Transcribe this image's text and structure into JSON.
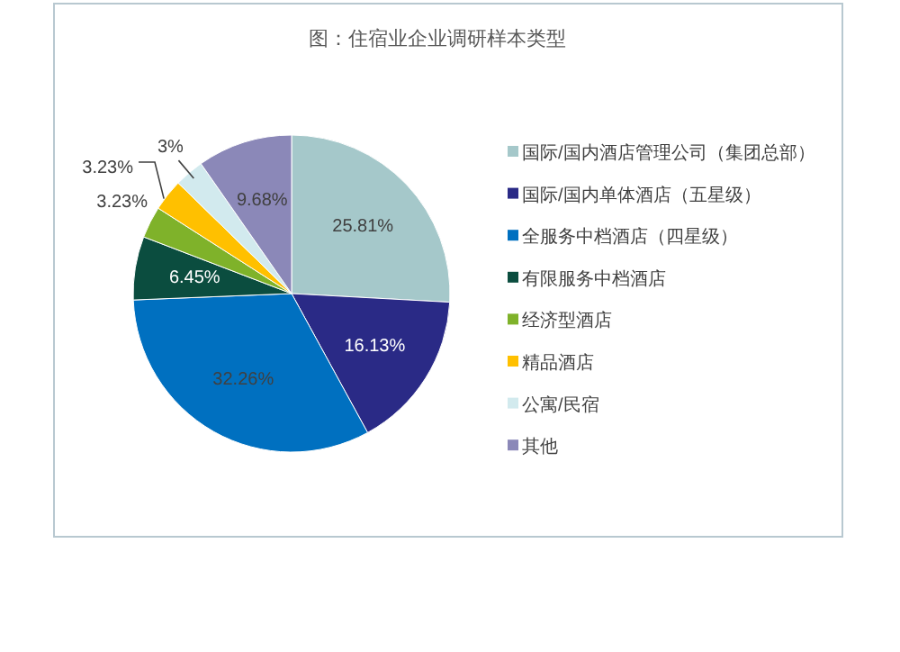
{
  "chart_data": {
    "type": "pie",
    "title": "图：住宿业企业调研样本类型",
    "categories": [
      "国际/国内酒店管理公司（集团总部）",
      "国际/国内单体酒店（五星级）",
      "全服务中档酒店（四星级）",
      "有限服务中档酒店",
      "经济型酒店",
      "精品酒店",
      "公寓/民宿",
      "其他"
    ],
    "values": [
      25.81,
      16.13,
      32.26,
      6.45,
      3.23,
      3.23,
      3,
      9.68
    ],
    "colors": [
      "#a5c8ca",
      "#2a2a86",
      "#0070c0",
      "#0b4d3f",
      "#7fb22a",
      "#ffc000",
      "#d2eaee",
      "#8b88b8"
    ],
    "value_labels": [
      "25.81%",
      "16.13%",
      "32.26%",
      "6.45%",
      "3.23%",
      "3.23%",
      "3%",
      "9.68%"
    ],
    "legend": "right"
  }
}
